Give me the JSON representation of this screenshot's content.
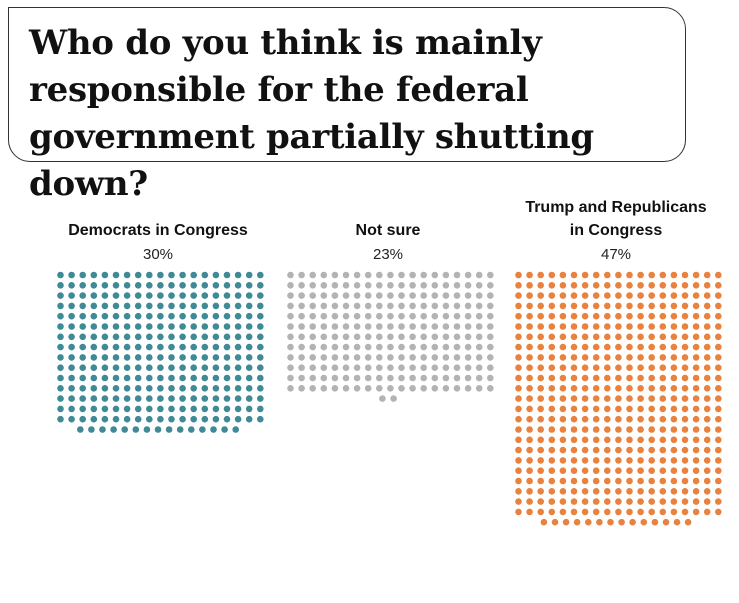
{
  "title": "Who do you think is mainly responsible for the federal government partially shutting down?",
  "colors": {
    "democrats": "#3f8a96",
    "not_sure": "#b3b3b3",
    "republicans": "#e8823e"
  },
  "chart_data": {
    "type": "waffle",
    "title": "Who do you think is mainly responsible for the federal government partially shutting down?",
    "unit": "percent",
    "groups": [
      {
        "label": "Democrats in Congress",
        "label_lines": [
          "Democrats in Congress"
        ],
        "value": 30,
        "value_label": "30%",
        "color": "#3f8a96"
      },
      {
        "label": "Not sure",
        "label_lines": [
          "Not sure"
        ],
        "value": 23,
        "value_label": "23%",
        "color": "#b3b3b3"
      },
      {
        "label": "Trump and Republicans in Congress",
        "label_lines": [
          "Trump and Republicans",
          "in Congress"
        ],
        "value": 47,
        "value_label": "47%",
        "color": "#e8823e"
      }
    ]
  }
}
